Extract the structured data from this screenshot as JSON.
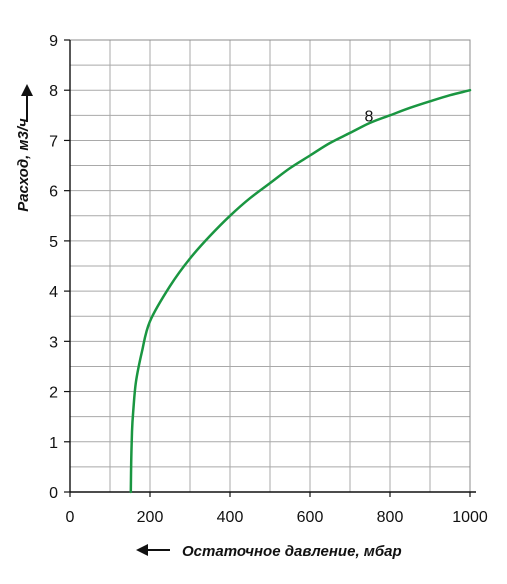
{
  "chart_data": {
    "type": "line",
    "xlabel": "Остаточное давление, мбар",
    "ylabel": "Расход, м3/ч",
    "xlim": [
      0,
      1000
    ],
    "ylim": [
      0,
      9
    ],
    "x_ticks": [
      "0",
      "200",
      "400",
      "600",
      "800",
      "1000"
    ],
    "y_ticks": [
      "0",
      "1",
      "2",
      "3",
      "4",
      "5",
      "6",
      "7",
      "8",
      "9"
    ],
    "grid": true,
    "series": [
      {
        "name": "8",
        "color": "#1a9641",
        "points": [
          [
            152,
            0
          ],
          [
            153,
            0.6
          ],
          [
            155,
            1.2
          ],
          [
            158,
            1.6
          ],
          [
            165,
            2.2
          ],
          [
            180,
            2.8
          ],
          [
            200,
            3.4
          ],
          [
            250,
            4.1
          ],
          [
            300,
            4.65
          ],
          [
            350,
            5.1
          ],
          [
            400,
            5.5
          ],
          [
            450,
            5.85
          ],
          [
            500,
            6.15
          ],
          [
            550,
            6.45
          ],
          [
            600,
            6.7
          ],
          [
            650,
            6.95
          ],
          [
            700,
            7.15
          ],
          [
            750,
            7.35
          ],
          [
            800,
            7.5
          ],
          [
            850,
            7.65
          ],
          [
            900,
            7.78
          ],
          [
            950,
            7.9
          ],
          [
            1000,
            8.0
          ]
        ]
      }
    ]
  }
}
